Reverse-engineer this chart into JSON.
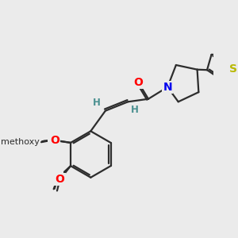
{
  "background_color": "#ebebeb",
  "bond_color": "#2d2d2d",
  "bond_width": 1.6,
  "atom_colors": {
    "O": "#ff0000",
    "N": "#0000ee",
    "S": "#b8b800",
    "H": "#4a9090",
    "C": "#2d2d2d"
  },
  "font_size_atom": 10,
  "font_size_H": 8.5,
  "font_size_methoxy": 8
}
